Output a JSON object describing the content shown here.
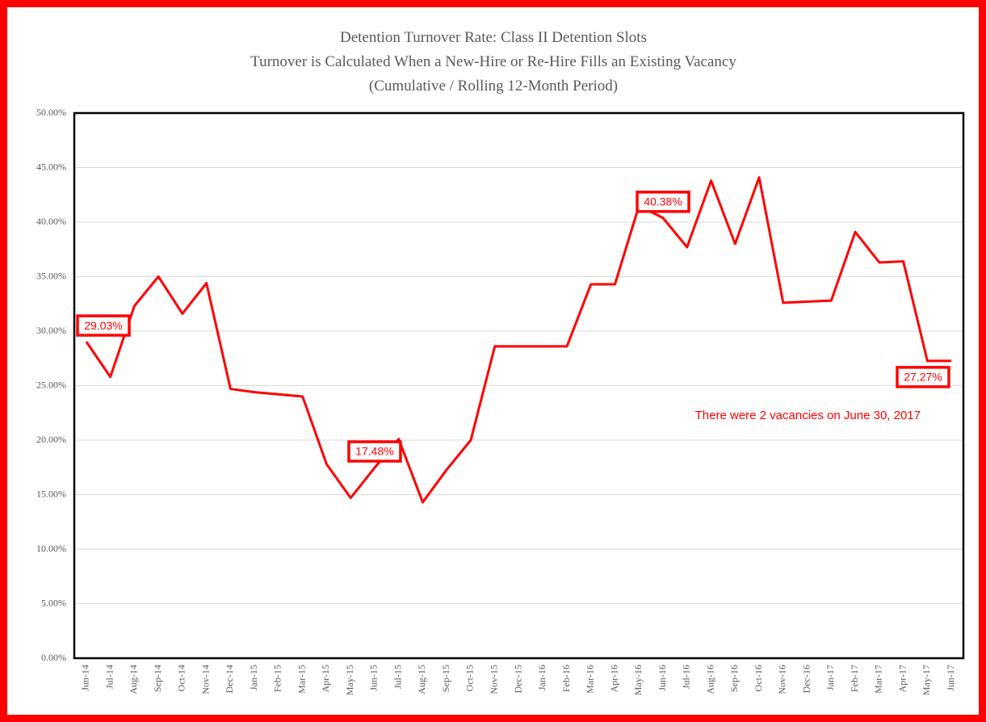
{
  "chart_data": {
    "type": "line",
    "title": [
      "Detention Turnover Rate:  Class II Detention Slots",
      "Turnover is Calculated When a New-Hire or  Re-Hire Fills  an Existing Vacancy",
      "(Cumulative / Rolling 12-Month Period)"
    ],
    "categories": [
      "Jun-14",
      "Jul-14",
      "Aug-14",
      "Sep-14",
      "Oct-14",
      "Nov-14",
      "Dec-14",
      "Jan-15",
      "Feb-15",
      "Mar-15",
      "Apr-15",
      "May-15",
      "Jun-15",
      "Jul-15",
      "Aug-15",
      "Sep-15",
      "Oct-15",
      "Nov-15",
      "Dec-15",
      "Jan-16",
      "Feb-16",
      "Mar-16",
      "Apr-16",
      "May-16",
      "Jun-16",
      "Jul-16",
      "Aug-16",
      "Sep-16",
      "Oct-16",
      "Nov-16",
      "Dec-16",
      "Jan-17",
      "Feb-17",
      "Mar-17",
      "Apr-17",
      "May-17",
      "Jun-17"
    ],
    "series": [
      {
        "name": "Turnover Rate",
        "color": "#ff0000",
        "values": [
          29.03,
          25.8,
          32.3,
          35.0,
          31.6,
          34.4,
          24.7,
          24.4,
          24.2,
          24.0,
          17.8,
          14.7,
          17.48,
          20.1,
          14.3,
          17.3,
          20.0,
          28.6,
          28.6,
          28.6,
          28.6,
          34.3,
          34.3,
          41.5,
          40.38,
          37.7,
          43.8,
          38.0,
          44.1,
          32.6,
          32.7,
          32.8,
          39.1,
          36.3,
          36.4,
          27.27,
          27.27
        ],
        "value_labels": [
          "29.03%",
          null,
          null,
          null,
          null,
          null,
          null,
          null,
          null,
          null,
          null,
          null,
          "17.48%",
          null,
          null,
          null,
          null,
          null,
          null,
          null,
          null,
          null,
          null,
          null,
          "40.38%",
          null,
          null,
          null,
          null,
          null,
          null,
          null,
          null,
          null,
          null,
          null,
          "27.27%"
        ]
      }
    ],
    "ylim": [
      0,
      50
    ],
    "yticks": [
      {
        "value": 0,
        "label": "0.00%"
      },
      {
        "value": 5,
        "label": "5.00%"
      },
      {
        "value": 10,
        "label": "10.00%"
      },
      {
        "value": 15,
        "label": "15.00%"
      },
      {
        "value": 20,
        "label": "20.00%"
      },
      {
        "value": 25,
        "label": "25.00%"
      },
      {
        "value": 30,
        "label": "30.00%"
      },
      {
        "value": 35,
        "label": "35.00%"
      },
      {
        "value": 40,
        "label": "40.00%"
      },
      {
        "value": 45,
        "label": "45.00%"
      },
      {
        "value": 50,
        "label": "50.00%"
      }
    ],
    "grid": true,
    "annotations": [
      "There were 2 vacancies on June 30, 2017"
    ]
  }
}
